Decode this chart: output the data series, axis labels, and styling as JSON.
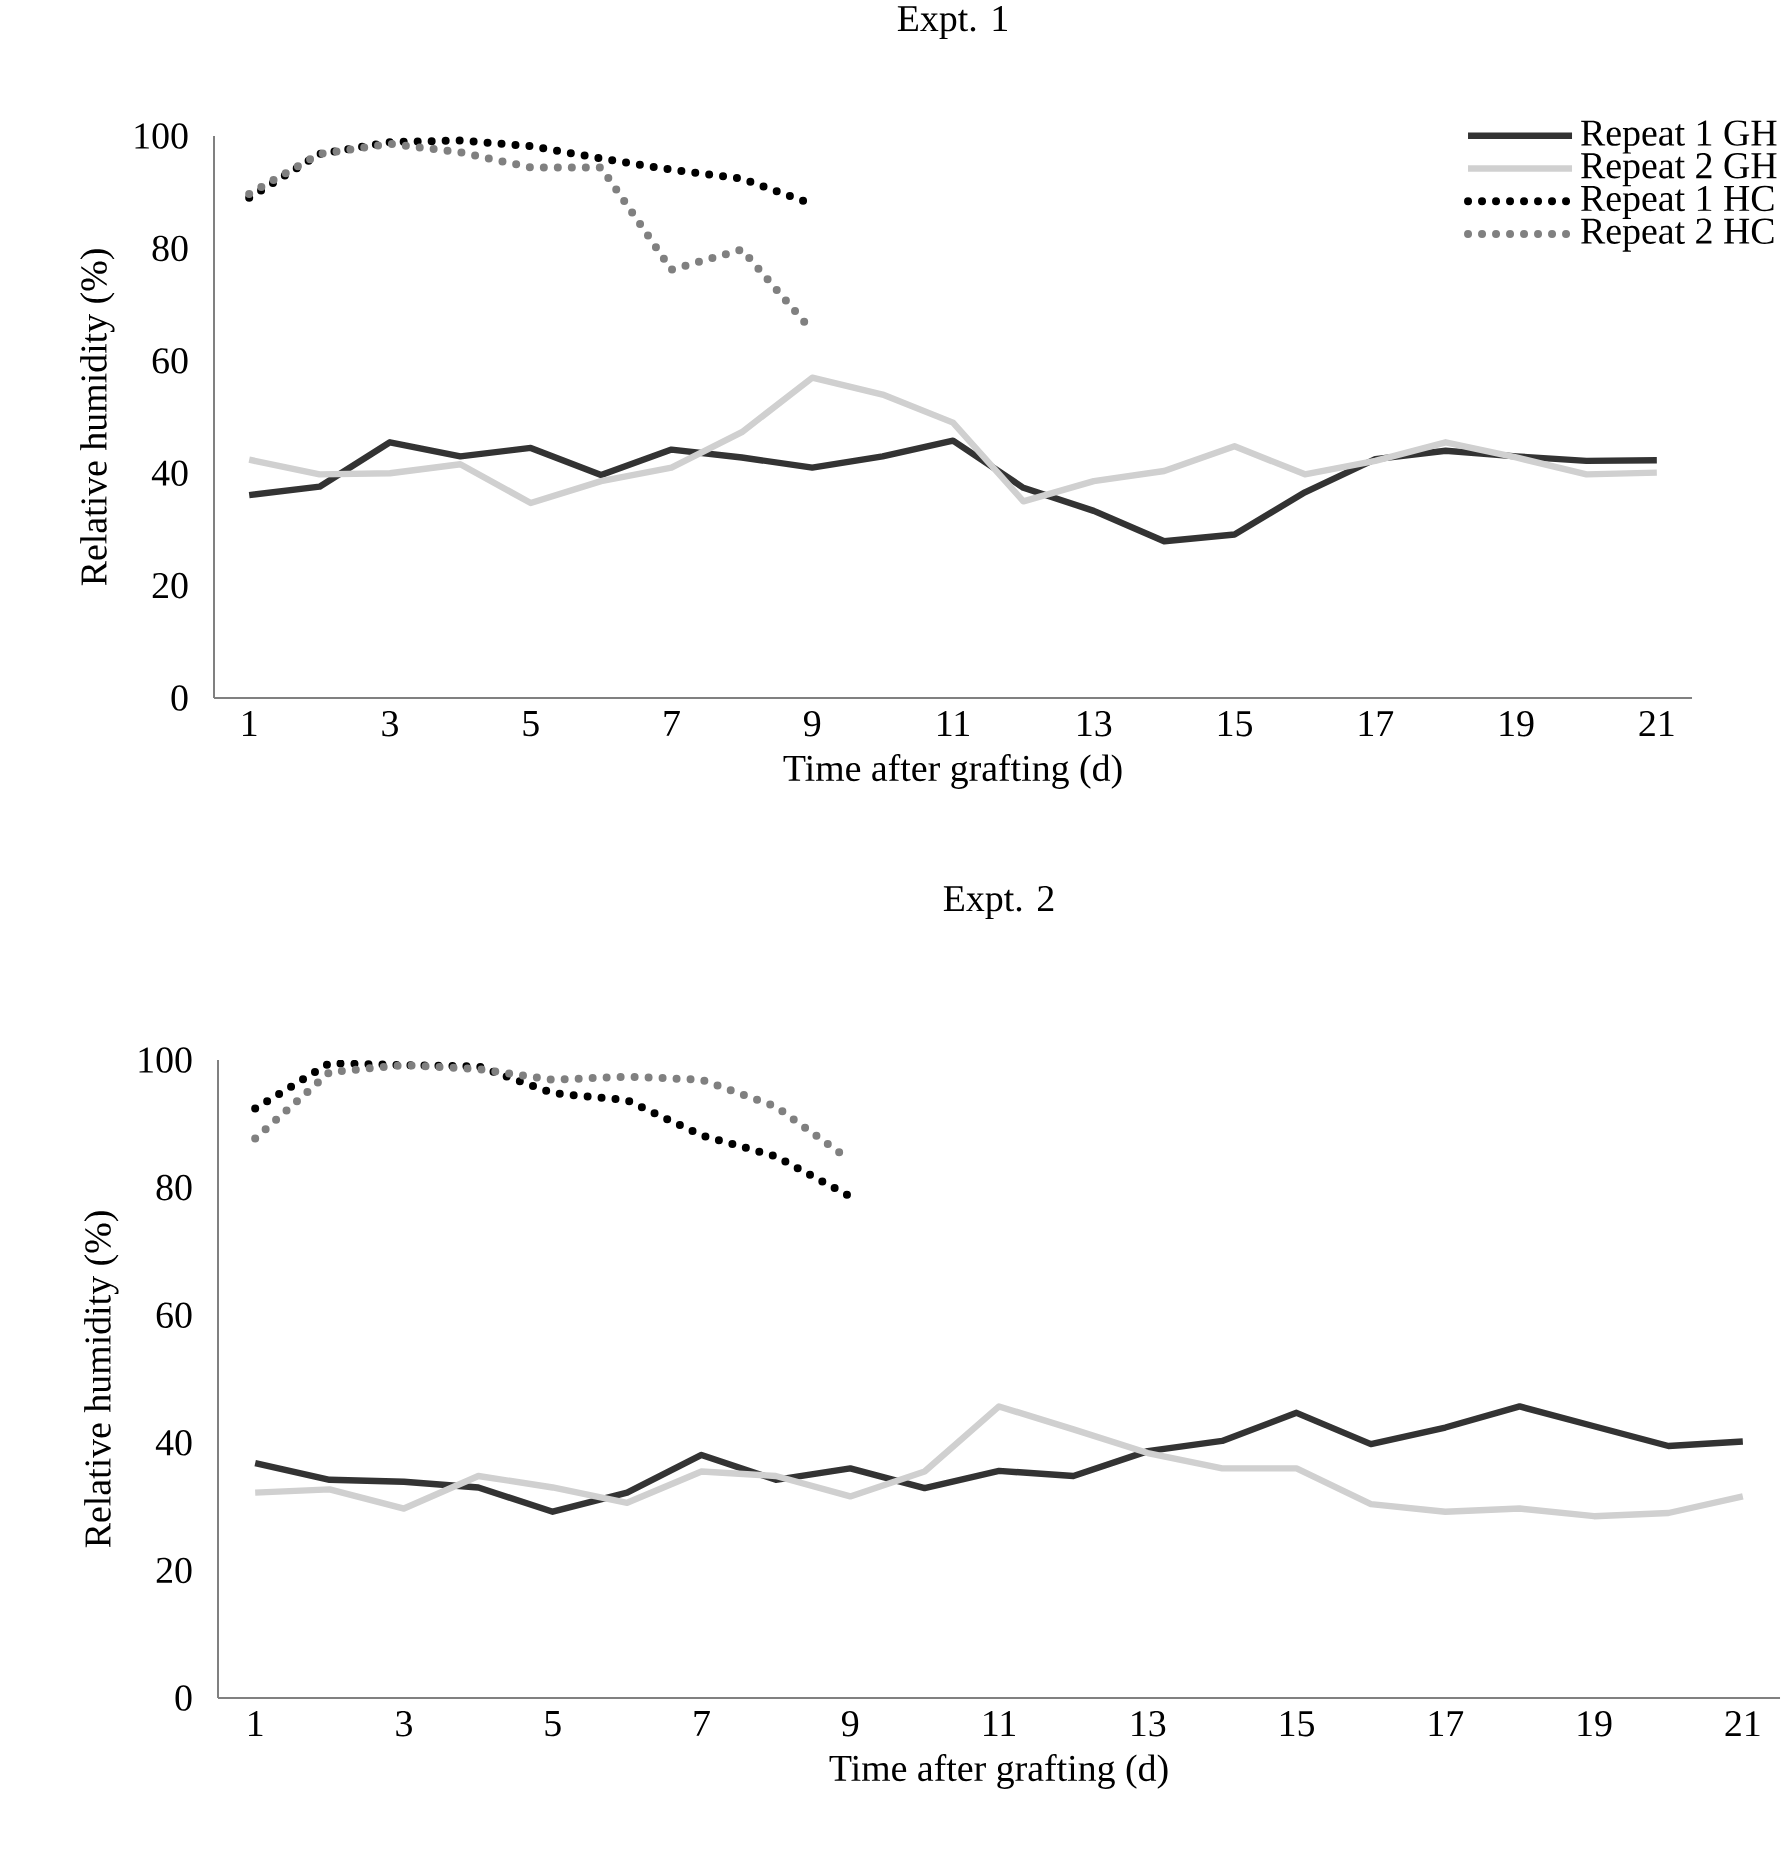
{
  "chart_data": [
    {
      "type": "line",
      "title": "Expt. 1",
      "xlabel": "Time after grafting (d)",
      "ylabel": "Relative humidity (%)",
      "x": [
        1,
        2,
        3,
        4,
        5,
        6,
        7,
        8,
        9,
        10,
        11,
        12,
        13,
        14,
        15,
        16,
        17,
        18,
        19,
        20,
        21
      ],
      "xlim": [
        0.5,
        21.5
      ],
      "xticks": [
        1,
        3,
        5,
        7,
        9,
        11,
        13,
        15,
        17,
        19,
        21
      ],
      "ylim": [
        0,
        100
      ],
      "yticks": [
        0,
        20,
        40,
        60,
        80,
        100
      ],
      "legend": "top right",
      "grid": false,
      "marker": "none",
      "series": [
        {
          "name": "Repeat 1 GH",
          "color": "#333333",
          "line_style": "solid",
          "values": [
            36.1,
            37.6,
            45.5,
            43,
            44.5,
            39.7,
            44.2,
            42.8,
            41,
            43,
            45.8,
            37.4,
            33.3,
            27.9,
            29.1,
            36.6,
            42.5,
            44,
            43,
            42.2,
            42.3
          ]
        },
        {
          "name": "Repeat 2 GH",
          "color": "#d0d0d0",
          "line_style": "solid",
          "values": [
            42.4,
            39.8,
            40,
            41.6,
            34.7,
            38.6,
            41,
            47.3,
            57,
            54,
            49,
            35,
            38.6,
            40.4,
            44.8,
            39.8,
            42.2,
            45.5,
            42.8,
            39.8,
            40.1
          ]
        },
        {
          "name": "Repeat 1 HC",
          "color": "#000000",
          "line_style": "dotted",
          "values": [
            89,
            96.8,
            98.9,
            99.2,
            98.2,
            96,
            94,
            92.4,
            87.9,
            null,
            null,
            null,
            null,
            null,
            null,
            null,
            null,
            null,
            null,
            null,
            null
          ]
        },
        {
          "name": "Repeat 2 HC",
          "color": "#808080",
          "line_style": "dotted",
          "values": [
            89.7,
            96.8,
            98.6,
            97.1,
            94.4,
            94.4,
            76.2,
            79.8,
            65.3,
            null,
            null,
            null,
            null,
            null,
            null,
            null,
            null,
            null,
            null,
            null,
            null
          ]
        }
      ]
    },
    {
      "type": "line",
      "title": "Expt. 2",
      "xlabel": "Time after grafting (d)",
      "ylabel": "Relative humidity (%)",
      "x": [
        1,
        2,
        3,
        4,
        5,
        6,
        7,
        8,
        9,
        10,
        11,
        12,
        13,
        14,
        15,
        16,
        17,
        18,
        19,
        20,
        21
      ],
      "xlim": [
        0.5,
        21.5
      ],
      "xticks": [
        1,
        3,
        5,
        7,
        9,
        11,
        13,
        15,
        17,
        19,
        21
      ],
      "ylim": [
        0,
        100
      ],
      "yticks": [
        0,
        20,
        40,
        60,
        80,
        100
      ],
      "grid": false,
      "marker": "none",
      "series": [
        {
          "color": "#333333",
          "line_style": "solid",
          "values": [
            36.8,
            34.2,
            33.9,
            33,
            29.2,
            32.2,
            38.1,
            34.2,
            36,
            32.9,
            35.6,
            34.8,
            38.7,
            40.3,
            44.7,
            39.8,
            42.4,
            45.7,
            42.6,
            39.5,
            40.2
          ]
        },
        {
          "color": "#d0d0d0",
          "line_style": "solid",
          "values": [
            32.2,
            32.7,
            29.7,
            34.8,
            33,
            30.6,
            35.5,
            34.8,
            31.6,
            35.5,
            45.7,
            42.1,
            38.4,
            36,
            36,
            30.4,
            29.2,
            29.7,
            28.5,
            29,
            31.6
          ]
        },
        {
          "color": "#000000",
          "line_style": "dotted",
          "values": [
            92.4,
            99.5,
            99.2,
            99,
            94.8,
            93.7,
            88.2,
            84.9,
            78.6,
            null,
            null,
            null,
            null,
            null,
            null,
            null,
            null,
            null,
            null,
            null,
            null
          ]
        },
        {
          "color": "#808080",
          "line_style": "dotted",
          "values": [
            87.7,
            98.1,
            99.2,
            98.6,
            96.9,
            97.4,
            96.9,
            92.7,
            84.3,
            null,
            null,
            null,
            null,
            null,
            null,
            null,
            null,
            null,
            null,
            null,
            null
          ]
        }
      ]
    }
  ]
}
